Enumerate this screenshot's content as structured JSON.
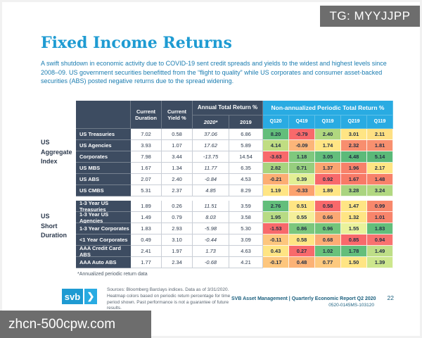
{
  "watermarks": {
    "tag": "TG: MYYJJPP",
    "site": "zhcn-500cpw.com"
  },
  "header": {
    "title": "Fixed Income Returns",
    "intro": "A swift shutdown in economic activity due to COVID-19 sent credit spreads and yields to the widest and highest levels since 2008–09. US government securities benefitted from the “flight to quality” while US corporates and consumer asset-backed securities (ABS) posted negative returns due to the spread widening."
  },
  "table": {
    "headers": {
      "duration": "Current Duration",
      "yield": "Current Yield %",
      "annual": "Annual Total Return %",
      "periodic": "Non-annualized Periodic Total Return %",
      "annual_2020": "2020*",
      "annual_2019": "2019",
      "quarters": [
        "Q120",
        "Q419",
        "Q319",
        "Q219",
        "Q119"
      ]
    },
    "groups": [
      {
        "label_lines": [
          "US",
          "Aggregate",
          "Index"
        ],
        "rows": [
          {
            "name": "US Treasuries",
            "duration": "7.02",
            "yield": "0.58",
            "ret_2020": "37.06",
            "ret_2019": "6.86",
            "periods": [
              {
                "v": "8.20",
                "c": "#63be7b"
              },
              {
                "v": "-0.79",
                "c": "#f8696b"
              },
              {
                "v": "2.40",
                "c": "#b0d77f"
              },
              {
                "v": "3.01",
                "c": "#ffe584"
              },
              {
                "v": "2.11",
                "c": "#fee083"
              }
            ]
          },
          {
            "name": "US Agencies",
            "duration": "3.93",
            "yield": "1.07",
            "ret_2020": "17.62",
            "ret_2019": "5.89",
            "periods": [
              {
                "v": "4.14",
                "c": "#c0dd82"
              },
              {
                "v": "-0.09",
                "c": "#fcb579"
              },
              {
                "v": "1.74",
                "c": "#ffe584"
              },
              {
                "v": "2.32",
                "c": "#f88e6e"
              },
              {
                "v": "1.81",
                "c": "#f8906f"
              }
            ]
          },
          {
            "name": "Corporates",
            "duration": "7.98",
            "yield": "3.44",
            "ret_2020": "-13.75",
            "ret_2019": "14.54",
            "periods": [
              {
                "v": "-3.63",
                "c": "#f8696b"
              },
              {
                "v": "1.18",
                "c": "#7fc87d"
              },
              {
                "v": "3.05",
                "c": "#63be7b"
              },
              {
                "v": "4.48",
                "c": "#5cba79"
              },
              {
                "v": "5.14",
                "c": "#5ab978"
              }
            ]
          },
          {
            "name": "US MBS",
            "duration": "1.67",
            "yield": "1.34",
            "ret_2020": "11.77",
            "ret_2019": "6.35",
            "periods": [
              {
                "v": "2.82",
                "c": "#a7d47f"
              },
              {
                "v": "0.71",
                "c": "#96ce7e"
              },
              {
                "v": "1.37",
                "c": "#fba471"
              },
              {
                "v": "1.96",
                "c": "#f8816a"
              },
              {
                "v": "2.17",
                "c": "#ffe584"
              }
            ]
          },
          {
            "name": "US ABS",
            "duration": "2.07",
            "yield": "2.40",
            "ret_2020": "-0.84",
            "ret_2019": "4.53",
            "periods": [
              {
                "v": "-0.21",
                "c": "#fcad73"
              },
              {
                "v": "0.39",
                "c": "#e2ef94"
              },
              {
                "v": "0.92",
                "c": "#f8696b"
              },
              {
                "v": "1.67",
                "c": "#f87a67"
              },
              {
                "v": "1.48",
                "c": "#f8826a"
              }
            ]
          },
          {
            "name": "US CMBS",
            "duration": "5.31",
            "yield": "2.37",
            "ret_2020": "4.85",
            "ret_2019": "8.29",
            "periods": [
              {
                "v": "1.19",
                "c": "#ffe584"
              },
              {
                "v": "-0.33",
                "c": "#fca26f"
              },
              {
                "v": "1.89",
                "c": "#ffe584"
              },
              {
                "v": "3.28",
                "c": "#aad47f"
              },
              {
                "v": "3.24",
                "c": "#b2d881"
              }
            ]
          }
        ]
      },
      {
        "label_lines": [
          "US",
          "Short",
          "Duration"
        ],
        "rows": [
          {
            "name": "1-3 Year US Treasuries",
            "duration": "1.89",
            "yield": "0.26",
            "ret_2020": "11.51",
            "ret_2019": "3.59",
            "periods": [
              {
                "v": "2.76",
                "c": "#63be7b"
              },
              {
                "v": "0.51",
                "c": "#ffe584"
              },
              {
                "v": "0.58",
                "c": "#f8696b"
              },
              {
                "v": "1.47",
                "c": "#ffe584"
              },
              {
                "v": "0.99",
                "c": "#f8886c"
              }
            ]
          },
          {
            "name": "1-3 Year US Agencies",
            "duration": "1.49",
            "yield": "0.79",
            "ret_2020": "8.03",
            "ret_2019": "3.58",
            "periods": [
              {
                "v": "1.95",
                "c": "#b7db84"
              },
              {
                "v": "0.55",
                "c": "#f4ef9a"
              },
              {
                "v": "0.66",
                "c": "#fba873"
              },
              {
                "v": "1.32",
                "c": "#ffe584"
              },
              {
                "v": "1.01",
                "c": "#f8846b"
              }
            ]
          },
          {
            "name": "1-3 Year Corporates",
            "duration": "1.83",
            "yield": "2.93",
            "ret_2020": "-5.98",
            "ret_2019": "5.30",
            "periods": [
              {
                "v": "-1.53",
                "c": "#f8696b"
              },
              {
                "v": "0.86",
                "c": "#7cc77d"
              },
              {
                "v": "0.96",
                "c": "#72c47b"
              },
              {
                "v": "1.55",
                "c": "#e9f29b"
              },
              {
                "v": "1.83",
                "c": "#63be7b"
              }
            ]
          },
          {
            "name": "<1 Year Corporates",
            "duration": "0.49",
            "yield": "3.10",
            "ret_2020": "-0.44",
            "ret_2019": "3.09",
            "periods": [
              {
                "v": "-0.11",
                "c": "#fdc67d"
              },
              {
                "v": "0.58",
                "c": "#ffe584"
              },
              {
                "v": "0.68",
                "c": "#fbac74"
              },
              {
                "v": "0.85",
                "c": "#f8696b"
              },
              {
                "v": "0.94",
                "c": "#f8726f"
              }
            ]
          },
          {
            "name": "AAA Credit Card ABS",
            "duration": "2.41",
            "yield": "1.97",
            "ret_2020": "1.73",
            "ret_2019": "4.63",
            "periods": [
              {
                "v": "0.43",
                "c": "#ffe584"
              },
              {
                "v": "0.27",
                "c": "#f8696b"
              },
              {
                "v": "1.02",
                "c": "#68c17b"
              },
              {
                "v": "1.78",
                "c": "#63be7b"
              },
              {
                "v": "1.49",
                "c": "#bede87"
              }
            ]
          },
          {
            "name": "AAA Auto ABS",
            "duration": "1.77",
            "yield": "2.34",
            "ret_2020": "-0.68",
            "ret_2019": "4.21",
            "periods": [
              {
                "v": "-0.17",
                "c": "#fdc67d"
              },
              {
                "v": "0.48",
                "c": "#fcb276"
              },
              {
                "v": "0.77",
                "c": "#fdc97e"
              },
              {
                "v": "1.50",
                "c": "#ffe584"
              },
              {
                "v": "1.39",
                "c": "#cde78d"
              }
            ]
          }
        ]
      }
    ],
    "footnote": "*Annualized periodic return data"
  },
  "footer": {
    "logo_text": "svb",
    "logo_chevron": "❯",
    "sources": "Sources: Bloomberg Barclays indices. Data as of 3/31/2020. Heatmap colors based on periodic return percentage for time period shown. Past performance is not a guarantee of future results.",
    "report_title": "SVB Asset Management | Quarterly Economic Report Q2 2020",
    "page_number": "22",
    "doc_code": "0520-0145MS-103120"
  },
  "colors": {
    "accent_cyan": "#29abe2",
    "navy": "#3d4c61",
    "title_blue": "#1e9bd2",
    "heat_red": "#f8696b",
    "heat_yellow": "#ffe584",
    "heat_green": "#63be7b"
  }
}
